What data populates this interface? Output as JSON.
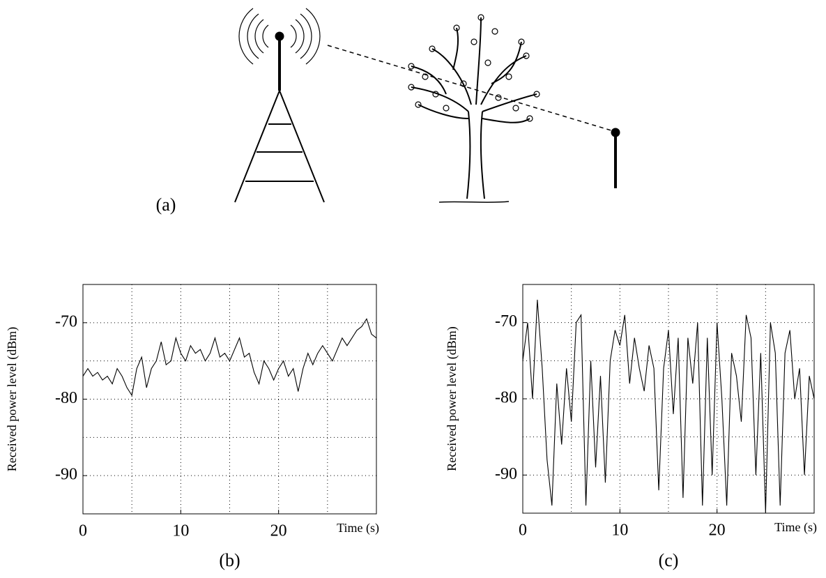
{
  "diagram": {
    "label": "(a)"
  },
  "chart_data": [
    {
      "type": "line",
      "caption": "(b)",
      "ylabel": "Received power level (dBm)",
      "xlabel": "Time (s)",
      "xlim": [
        0,
        30
      ],
      "ylim": [
        -95,
        -65
      ],
      "xticks": [
        0,
        10,
        20
      ],
      "yticks": [
        -90,
        -80,
        -70
      ],
      "xgrid": [
        5,
        10,
        15,
        20,
        25
      ],
      "ygrid": [
        -90,
        -85,
        -80,
        -75,
        -70
      ],
      "color": "#000000",
      "x": [
        0,
        0.5,
        1,
        1.5,
        2,
        2.5,
        3,
        3.5,
        4,
        4.5,
        5,
        5.5,
        6,
        6.5,
        7,
        7.5,
        8,
        8.5,
        9,
        9.5,
        10,
        10.5,
        11,
        11.5,
        12,
        12.5,
        13,
        13.5,
        14,
        14.5,
        15,
        15.5,
        16,
        16.5,
        17,
        17.5,
        18,
        18.5,
        19,
        19.5,
        20,
        20.5,
        21,
        21.5,
        22,
        22.5,
        23,
        23.5,
        24,
        24.5,
        25,
        25.5,
        26,
        26.5,
        27,
        27.5,
        28,
        28.5,
        29,
        29.5,
        30
      ],
      "values": [
        -77,
        -76,
        -77,
        -76.5,
        -77.5,
        -77,
        -78,
        -76,
        -77,
        -78.5,
        -79.5,
        -76,
        -74.5,
        -78.5,
        -76,
        -75,
        -72.5,
        -75.5,
        -75,
        -72,
        -74,
        -75,
        -73,
        -74,
        -73.5,
        -75,
        -74,
        -72,
        -74.5,
        -74,
        -75,
        -73.5,
        -72,
        -74.5,
        -74,
        -76.5,
        -78,
        -75,
        -76,
        -77.5,
        -76,
        -75,
        -77,
        -76,
        -79,
        -76,
        -74,
        -75.5,
        -74,
        -73,
        -74,
        -75,
        -73.5,
        -72,
        -73,
        -72,
        -71,
        -70.5,
        -69.5,
        -71.5,
        -72
      ]
    },
    {
      "type": "line",
      "caption": "(c)",
      "ylabel": "Received power level (dBm)",
      "xlabel": "Time (s)",
      "xlim": [
        0,
        30
      ],
      "ylim": [
        -95,
        -65
      ],
      "xticks": [
        0,
        10,
        20
      ],
      "yticks": [
        -90,
        -80,
        -70
      ],
      "xgrid": [
        5,
        10,
        15,
        20,
        25
      ],
      "ygrid": [
        -90,
        -85,
        -80,
        -75,
        -70
      ],
      "color": "#000000",
      "x": [
        0,
        0.5,
        1,
        1.5,
        2,
        2.5,
        3,
        3.5,
        4,
        4.5,
        5,
        5.5,
        6,
        6.5,
        7,
        7.5,
        8,
        8.5,
        9,
        9.5,
        10,
        10.5,
        11,
        11.5,
        12,
        12.5,
        13,
        13.5,
        14,
        14.5,
        15,
        15.5,
        16,
        16.5,
        17,
        17.5,
        18,
        18.5,
        19,
        19.5,
        20,
        20.5,
        21,
        21.5,
        22,
        22.5,
        23,
        23.5,
        24,
        24.5,
        25,
        25.5,
        26,
        26.5,
        27,
        27.5,
        28,
        28.5,
        29,
        29.5,
        30
      ],
      "values": [
        -75,
        -70,
        -80,
        -67,
        -76,
        -88,
        -94,
        -78,
        -86,
        -76,
        -83,
        -70,
        -69,
        -94,
        -75,
        -89,
        -77,
        -91,
        -75,
        -71,
        -73,
        -69,
        -78,
        -72,
        -76,
        -79,
        -73,
        -76,
        -92,
        -76,
        -71,
        -82,
        -72,
        -93,
        -72,
        -78,
        -70,
        -94,
        -72,
        -90,
        -70,
        -80,
        -94,
        -74,
        -77,
        -83,
        -69,
        -72,
        -90,
        -74,
        -95,
        -70,
        -74,
        -94,
        -74,
        -71,
        -80,
        -76,
        -90,
        -77,
        -80
      ]
    }
  ]
}
